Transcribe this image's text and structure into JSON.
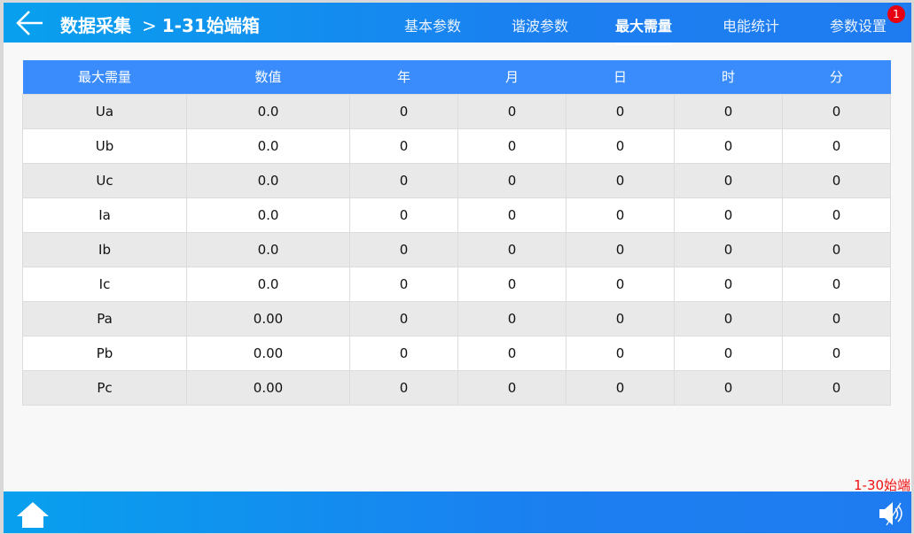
{
  "header": {
    "breadcrumb_root": "数据采集",
    "separator": ">",
    "breadcrumb_current": "1-31始端箱",
    "tabs": [
      {
        "label": "基本参数"
      },
      {
        "label": "谐波参数"
      },
      {
        "label": "最大需量",
        "active": true
      },
      {
        "label": "电能统计"
      },
      {
        "label": "参数设置"
      }
    ],
    "badge_count": "1"
  },
  "table": {
    "columns": [
      "最大需量",
      "数值",
      "年",
      "月",
      "日",
      "时",
      "分"
    ],
    "rows": [
      [
        "Ua",
        "0.0",
        "0",
        "0",
        "0",
        "0",
        "0"
      ],
      [
        "Ub",
        "0.0",
        "0",
        "0",
        "0",
        "0",
        "0"
      ],
      [
        "Uc",
        "0.0",
        "0",
        "0",
        "0",
        "0",
        "0"
      ],
      [
        "Ia",
        "0.0",
        "0",
        "0",
        "0",
        "0",
        "0"
      ],
      [
        "Ib",
        "0.0",
        "0",
        "0",
        "0",
        "0",
        "0"
      ],
      [
        "Ic",
        "0.0",
        "0",
        "0",
        "0",
        "0",
        "0"
      ],
      [
        "Pa",
        "0.00",
        "0",
        "0",
        "0",
        "0",
        "0"
      ],
      [
        "Pb",
        "0.00",
        "0",
        "0",
        "0",
        "0",
        "0"
      ],
      [
        "Pc",
        "0.00",
        "0",
        "0",
        "0",
        "0",
        "0"
      ]
    ]
  },
  "footer": {
    "marquee": "1-30始端"
  },
  "colors": {
    "header_accent": "#1b7ff0",
    "table_header": "#3a8cfc",
    "badge": "#e60012",
    "marquee": "#f01010"
  }
}
